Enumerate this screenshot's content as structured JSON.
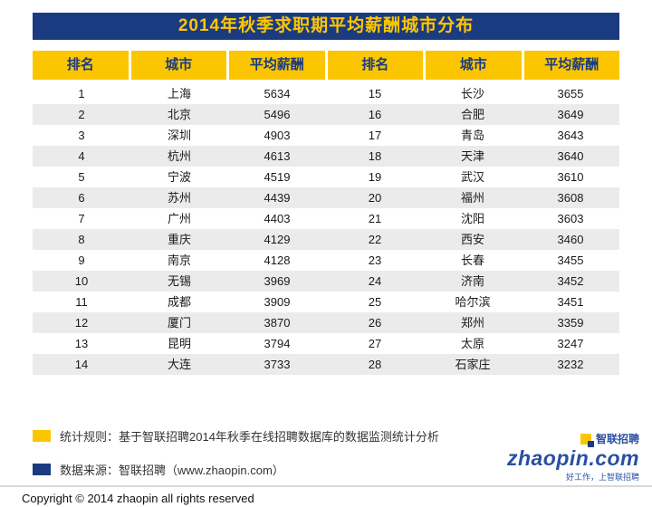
{
  "title": "2014年秋季求职期平均薪酬城市分布",
  "table": {
    "headers": [
      "排名",
      "城市",
      "平均薪酬",
      "排名",
      "城市",
      "平均薪酬"
    ]
  },
  "chart_data": {
    "type": "table",
    "title": "2014年秋季求职期平均薪酬城市分布",
    "columns": [
      "排名",
      "城市",
      "平均薪酬"
    ],
    "layout": "two column-groups side by side: ranks 1-14 left, 15-28 right",
    "rows": [
      [
        1,
        "上海",
        5634
      ],
      [
        2,
        "北京",
        5496
      ],
      [
        3,
        "深圳",
        4903
      ],
      [
        4,
        "杭州",
        4613
      ],
      [
        5,
        "宁波",
        4519
      ],
      [
        6,
        "苏州",
        4439
      ],
      [
        7,
        "广州",
        4403
      ],
      [
        8,
        "重庆",
        4129
      ],
      [
        9,
        "南京",
        4128
      ],
      [
        10,
        "无锡",
        3969
      ],
      [
        11,
        "成都",
        3909
      ],
      [
        12,
        "厦门",
        3870
      ],
      [
        13,
        "昆明",
        3794
      ],
      [
        14,
        "大连",
        3733
      ],
      [
        15,
        "长沙",
        3655
      ],
      [
        16,
        "合肥",
        3649
      ],
      [
        17,
        "青岛",
        3643
      ],
      [
        18,
        "天津",
        3640
      ],
      [
        19,
        "武汉",
        3610
      ],
      [
        20,
        "福州",
        3608
      ],
      [
        21,
        "沈阳",
        3603
      ],
      [
        22,
        "西安",
        3460
      ],
      [
        23,
        "长春",
        3455
      ],
      [
        24,
        "济南",
        3452
      ],
      [
        25,
        "哈尔滨",
        3451
      ],
      [
        26,
        "郑州",
        3359
      ],
      [
        27,
        "太原",
        3247
      ],
      [
        28,
        "石家庄",
        3232
      ]
    ]
  },
  "legend": {
    "rule": "统计规则：基于智联招聘2014年秋季在线招聘数据库的数据监测统计分析",
    "source": "数据来源：智联招聘（www.zhaopin.com）"
  },
  "logo": {
    "brand": "智联招聘",
    "domain": "zhaopin.com",
    "tagline": "好工作，上智联招聘"
  },
  "copyright": "Copyright © 2014 zhaopin all rights reserved",
  "colors": {
    "navy": "#1B3B80",
    "yellow": "#FBC600",
    "row_alt": "#EBEBEB",
    "logo_blue": "#2A4FA2"
  }
}
